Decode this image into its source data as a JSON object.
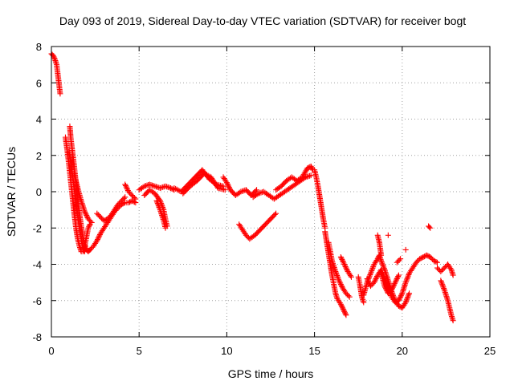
{
  "chart_data": {
    "type": "scatter",
    "title": "Day 093 of 2019, Sidereal Day-to-day VTEC variation (SDTVAR) for receiver bogt",
    "xlabel": "GPS time / hours",
    "ylabel": "SDTVAR / TECUs",
    "xlim": [
      0,
      25
    ],
    "ylim": [
      -8,
      8
    ],
    "xticks": [
      0,
      5,
      10,
      15,
      20,
      25
    ],
    "yticks": [
      -8,
      -6,
      -4,
      -2,
      0,
      2,
      4,
      6,
      8
    ],
    "xtick_labels": [
      "0",
      "5",
      "10",
      "15",
      "20",
      "25"
    ],
    "ytick_labels": [
      "-8",
      "-6",
      "-4",
      "-2",
      "0",
      "2",
      "4",
      "6",
      "8"
    ],
    "grid": true,
    "marker": "+",
    "color": "#ff0000",
    "series": [
      {
        "name": "SDTVAR",
        "segments": [
          [
            [
              0.0,
              7.6
            ],
            [
              0.1,
              7.5
            ],
            [
              0.2,
              7.3
            ],
            [
              0.3,
              7.0
            ],
            [
              0.35,
              6.6
            ],
            [
              0.4,
              6.2
            ],
            [
              0.45,
              5.8
            ],
            [
              0.5,
              5.4
            ]
          ],
          [
            [
              0.8,
              3.0
            ],
            [
              0.9,
              2.3
            ],
            [
              1.0,
              1.5
            ],
            [
              1.1,
              0.6
            ],
            [
              1.2,
              -0.3
            ],
            [
              1.3,
              -1.2
            ],
            [
              1.4,
              -2.0
            ],
            [
              1.5,
              -2.6
            ],
            [
              1.6,
              -3.0
            ],
            [
              1.7,
              -3.3
            ],
            [
              1.8,
              -3.3
            ],
            [
              1.9,
              -3.0
            ],
            [
              2.0,
              -2.5
            ],
            [
              2.1,
              -2.0
            ],
            [
              2.2,
              -1.8
            ]
          ],
          [
            [
              1.05,
              3.6
            ],
            [
              1.1,
              3.0
            ],
            [
              1.2,
              2.2
            ],
            [
              1.3,
              1.4
            ],
            [
              1.4,
              0.5
            ],
            [
              1.5,
              -0.4
            ],
            [
              1.6,
              -1.2
            ],
            [
              1.7,
              -1.9
            ],
            [
              1.8,
              -2.5
            ],
            [
              1.9,
              -2.9
            ],
            [
              2.0,
              -3.2
            ],
            [
              2.1,
              -3.3
            ],
            [
              2.2,
              -3.2
            ]
          ],
          [
            [
              1.0,
              2.2
            ],
            [
              1.1,
              1.6
            ],
            [
              1.2,
              0.9
            ],
            [
              1.3,
              0.2
            ],
            [
              1.4,
              -0.6
            ],
            [
              1.5,
              -1.3
            ],
            [
              1.6,
              -2.0
            ],
            [
              1.7,
              -2.6
            ],
            [
              1.8,
              -3.1
            ],
            [
              1.9,
              -3.3
            ]
          ],
          [
            [
              1.3,
              1.0
            ],
            [
              1.5,
              0.2
            ],
            [
              1.7,
              -0.5
            ],
            [
              1.9,
              -1.1
            ],
            [
              2.1,
              -1.5
            ],
            [
              2.3,
              -1.7
            ]
          ],
          [
            [
              2.2,
              -3.2
            ],
            [
              2.4,
              -3.0
            ],
            [
              2.6,
              -2.7
            ],
            [
              2.8,
              -2.3
            ],
            [
              3.0,
              -2.0
            ],
            [
              3.2,
              -1.7
            ],
            [
              3.4,
              -1.4
            ],
            [
              3.6,
              -1.1
            ],
            [
              3.8,
              -0.9
            ],
            [
              4.0,
              -0.7
            ],
            [
              4.2,
              -0.6
            ],
            [
              4.4,
              -0.6
            ],
            [
              4.6,
              -0.5
            ],
            [
              4.8,
              -0.6
            ]
          ],
          [
            [
              2.6,
              -1.2
            ],
            [
              2.8,
              -1.4
            ],
            [
              3.0,
              -1.6
            ],
            [
              3.2,
              -1.5
            ],
            [
              3.4,
              -1.3
            ],
            [
              3.6,
              -1.0
            ],
            [
              3.8,
              -0.7
            ],
            [
              4.0,
              -0.5
            ],
            [
              4.2,
              -0.3
            ]
          ],
          [
            [
              4.2,
              0.4
            ],
            [
              4.4,
              0.0
            ],
            [
              4.6,
              -0.2
            ],
            [
              4.8,
              -0.4
            ]
          ],
          [
            [
              5.0,
              0.1
            ],
            [
              5.3,
              0.3
            ],
            [
              5.6,
              0.4
            ],
            [
              5.9,
              0.3
            ],
            [
              6.2,
              0.2
            ],
            [
              6.5,
              0.3
            ],
            [
              6.8,
              0.2
            ],
            [
              7.0,
              0.1
            ]
          ],
          [
            [
              5.3,
              -0.2
            ],
            [
              5.6,
              0.1
            ],
            [
              5.9,
              -0.1
            ],
            [
              6.2,
              -0.5
            ],
            [
              6.4,
              -1.0
            ],
            [
              6.5,
              -1.5
            ],
            [
              6.6,
              -1.9
            ]
          ],
          [
            [
              6.0,
              -0.5
            ],
            [
              6.2,
              -1.0
            ],
            [
              6.4,
              -1.6
            ],
            [
              6.5,
              -2.0
            ]
          ],
          [
            [
              7.0,
              0.2
            ],
            [
              7.4,
              0.0
            ],
            [
              7.8,
              0.4
            ],
            [
              8.2,
              0.8
            ],
            [
              8.6,
              1.2
            ],
            [
              9.0,
              0.7
            ],
            [
              9.4,
              0.4
            ],
            [
              9.8,
              0.3
            ]
          ],
          [
            [
              7.5,
              -0.1
            ],
            [
              7.9,
              0.3
            ],
            [
              8.3,
              0.6
            ],
            [
              8.7,
              1.0
            ],
            [
              9.1,
              0.8
            ],
            [
              9.5,
              0.2
            ],
            [
              9.9,
              0.1
            ]
          ],
          [
            [
              9.8,
              0.8
            ],
            [
              10.0,
              0.5
            ],
            [
              10.2,
              0.1
            ],
            [
              10.5,
              -0.2
            ],
            [
              10.8,
              0.0
            ],
            [
              11.1,
              0.1
            ],
            [
              11.4,
              -0.2
            ],
            [
              11.7,
              0.1
            ]
          ],
          [
            [
              10.7,
              -1.8
            ],
            [
              10.9,
              -2.1
            ],
            [
              11.1,
              -2.4
            ],
            [
              11.3,
              -2.6
            ],
            [
              11.6,
              -2.4
            ],
            [
              11.9,
              -2.1
            ],
            [
              12.2,
              -1.8
            ],
            [
              12.5,
              -1.5
            ],
            [
              12.8,
              -1.2
            ]
          ],
          [
            [
              11.5,
              -0.3
            ],
            [
              11.8,
              -0.1
            ],
            [
              12.1,
              0.0
            ],
            [
              12.4,
              -0.2
            ],
            [
              12.7,
              -0.4
            ],
            [
              13.0,
              -0.2
            ],
            [
              13.3,
              0.0
            ],
            [
              13.6,
              0.2
            ],
            [
              13.9,
              0.4
            ],
            [
              14.2,
              0.6
            ],
            [
              14.5,
              0.8
            ],
            [
              14.8,
              0.9
            ]
          ],
          [
            [
              12.8,
              0.1
            ],
            [
              13.1,
              0.3
            ],
            [
              13.4,
              0.6
            ],
            [
              13.7,
              0.8
            ],
            [
              14.0,
              0.6
            ],
            [
              14.3,
              0.8
            ],
            [
              14.6,
              1.3
            ],
            [
              14.8,
              1.4
            ],
            [
              14.9,
              1.2
            ]
          ],
          [
            [
              15.0,
              1.2
            ],
            [
              15.1,
              0.8
            ],
            [
              15.2,
              0.3
            ],
            [
              15.3,
              -0.3
            ],
            [
              15.4,
              -0.9
            ],
            [
              15.5,
              -1.5
            ],
            [
              15.6,
              -2.0
            ]
          ],
          [
            [
              15.6,
              -2.2
            ],
            [
              15.7,
              -2.8
            ],
            [
              15.8,
              -3.4
            ],
            [
              15.9,
              -4.0
            ],
            [
              16.0,
              -4.6
            ],
            [
              16.1,
              -5.1
            ],
            [
              16.2,
              -5.6
            ],
            [
              16.3,
              -5.9
            ],
            [
              16.5,
              -6.2
            ],
            [
              16.7,
              -6.6
            ],
            [
              16.8,
              -6.8
            ]
          ],
          [
            [
              15.8,
              -2.8
            ],
            [
              15.9,
              -3.3
            ],
            [
              16.0,
              -3.8
            ],
            [
              16.2,
              -4.4
            ],
            [
              16.4,
              -4.9
            ],
            [
              16.6,
              -5.3
            ],
            [
              16.8,
              -5.6
            ],
            [
              17.0,
              -5.8
            ]
          ],
          [
            [
              16.5,
              -3.6
            ],
            [
              16.7,
              -4.0
            ],
            [
              16.9,
              -4.4
            ],
            [
              17.1,
              -4.7
            ]
          ],
          [
            [
              17.5,
              -4.7
            ],
            [
              17.6,
              -5.2
            ],
            [
              17.7,
              -5.8
            ],
            [
              17.8,
              -6.1
            ]
          ],
          [
            [
              17.8,
              -5.7
            ],
            [
              18.0,
              -5.0
            ],
            [
              18.2,
              -4.5
            ],
            [
              18.4,
              -4.0
            ],
            [
              18.6,
              -3.7
            ],
            [
              18.7,
              -3.5
            ],
            [
              18.8,
              -3.8
            ],
            [
              19.0,
              -4.3
            ],
            [
              19.2,
              -4.9
            ],
            [
              19.4,
              -5.5
            ],
            [
              19.6,
              -6.0
            ],
            [
              19.8,
              -6.3
            ],
            [
              20.0,
              -6.4
            ],
            [
              20.2,
              -6.1
            ],
            [
              20.4,
              -5.6
            ]
          ],
          [
            [
              18.6,
              -2.4
            ],
            [
              18.7,
              -2.8
            ],
            [
              18.8,
              -3.5
            ]
          ],
          [
            [
              18.0,
              -4.8
            ],
            [
              18.2,
              -5.2
            ],
            [
              18.4,
              -5.0
            ],
            [
              18.6,
              -4.6
            ],
            [
              18.8,
              -4.3
            ],
            [
              19.0,
              -4.8
            ],
            [
              19.2,
              -5.3
            ],
            [
              19.4,
              -5.8
            ],
            [
              19.6,
              -6.1
            ],
            [
              19.8,
              -6.0
            ],
            [
              20.0,
              -5.6
            ],
            [
              20.2,
              -5.0
            ],
            [
              20.4,
              -4.5
            ],
            [
              20.6,
              -4.2
            ],
            [
              20.8,
              -3.9
            ],
            [
              21.0,
              -3.7
            ],
            [
              21.2,
              -3.6
            ],
            [
              21.4,
              -3.5
            ],
            [
              21.6,
              -3.6
            ],
            [
              21.8,
              -3.8
            ],
            [
              22.0,
              -3.9
            ]
          ],
          [
            [
              18.8,
              -4.5
            ],
            [
              19.0,
              -5.2
            ],
            [
              19.2,
              -5.6
            ],
            [
              19.4,
              -5.4
            ],
            [
              19.6,
              -5.0
            ],
            [
              19.8,
              -4.6
            ]
          ],
          [
            [
              19.2,
              -2.4
            ]
          ],
          [
            [
              19.7,
              -3.9
            ],
            [
              19.9,
              -3.7
            ]
          ],
          [
            [
              20.2,
              -3.2
            ]
          ],
          [
            [
              21.5,
              -1.9
            ],
            [
              21.6,
              -2.0
            ]
          ],
          [
            [
              22.0,
              -4.2
            ],
            [
              22.2,
              -4.4
            ],
            [
              22.4,
              -4.2
            ],
            [
              22.6,
              -4.0
            ],
            [
              22.8,
              -4.3
            ],
            [
              22.9,
              -4.6
            ]
          ],
          [
            [
              22.2,
              -4.9
            ],
            [
              22.4,
              -5.4
            ],
            [
              22.6,
              -6.0
            ],
            [
              22.7,
              -6.4
            ],
            [
              22.8,
              -6.8
            ],
            [
              22.9,
              -7.1
            ]
          ]
        ]
      }
    ]
  }
}
